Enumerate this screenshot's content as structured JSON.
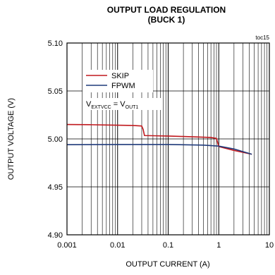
{
  "chart_data": {
    "type": "line",
    "title": "OUTPUT LOAD REGULATION",
    "subtitle": "(BUCK 1)",
    "corner_label": "toc15",
    "xlabel": "OUTPUT CURRENT (A)",
    "ylabel": "OUTPUT VOLTAGE (V)",
    "x_scale": "log",
    "xlim": [
      0.001,
      10
    ],
    "ylim": [
      4.9,
      5.1
    ],
    "x_ticks": [
      "0.001",
      "0.01",
      "0.1",
      "1",
      "10"
    ],
    "y_ticks": [
      "4.90",
      "4.95",
      "5.00",
      "5.05",
      "5.10"
    ],
    "grid": true,
    "legend_position": "top-left",
    "annotation": {
      "parts": [
        {
          "text": "V",
          "sub": false
        },
        {
          "text": "EXTVCC",
          "sub": true
        },
        {
          "text": " = V",
          "sub": false
        },
        {
          "text": "OUT1",
          "sub": true
        }
      ]
    },
    "series": [
      {
        "name": "SKIP",
        "color": "#c0191e",
        "points": [
          [
            0.001,
            5.015
          ],
          [
            0.003,
            5.0148
          ],
          [
            0.008,
            5.0144
          ],
          [
            0.02,
            5.014
          ],
          [
            0.03,
            5.0135
          ],
          [
            0.032,
            5.01
          ],
          [
            0.034,
            5.0035
          ],
          [
            0.05,
            5.0033
          ],
          [
            0.1,
            5.003
          ],
          [
            0.2,
            5.0025
          ],
          [
            0.4,
            5.002
          ],
          [
            0.7,
            5.0015
          ],
          [
            0.9,
            5.0005
          ],
          [
            1.0,
            4.992
          ],
          [
            2.0,
            4.988
          ],
          [
            4.5,
            4.984
          ]
        ]
      },
      {
        "name": "FPWM",
        "color": "#1f3a7a",
        "points": [
          [
            0.001,
            4.994
          ],
          [
            0.01,
            4.9942
          ],
          [
            0.1,
            4.9942
          ],
          [
            0.5,
            4.9935
          ],
          [
            1.0,
            4.9925
          ],
          [
            2.0,
            4.9895
          ],
          [
            4.5,
            4.984
          ]
        ]
      }
    ]
  }
}
